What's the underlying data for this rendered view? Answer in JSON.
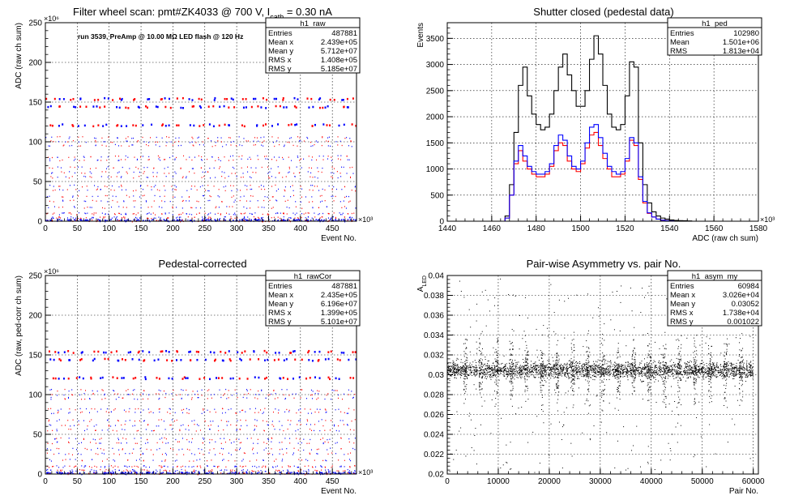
{
  "chart_data": [
    {
      "type": "scatter",
      "title_parts": {
        "main": "Filter wheel scan: pmt#ZK4033 @   700 V, I",
        "sub": "cath",
        "tail": " = 0.30 nA"
      },
      "annotation": "run 3539, PreAmp @ 10.00 MΩ LED flash @  120 Hz",
      "xlabel": "Event No.",
      "ylabel": "ADC (raw ch sum)",
      "x_multiplier": "×10³",
      "y_multiplier": "×10⁶",
      "xlim": [
        0,
        487.9
      ],
      "ylim": [
        0,
        250
      ],
      "xticks": [
        "0",
        "50",
        "100",
        "150",
        "200",
        "250",
        "300",
        "350",
        "400",
        "450"
      ],
      "yticks": [
        "0",
        "50",
        "100",
        "150",
        "200",
        "250"
      ],
      "levels": [
        1,
        5,
        10,
        18,
        26,
        32,
        40,
        45,
        56,
        62,
        68,
        78,
        82,
        96,
        101,
        106,
        122,
        145,
        155
      ],
      "stats": {
        "name": "h1_raw",
        "rows": [
          [
            "Entries",
            "487881"
          ],
          [
            "Mean x",
            "2.439e+05"
          ],
          [
            "Mean y",
            "5.712e+07"
          ],
          [
            "RMS x",
            "1.408e+05"
          ],
          [
            "RMS y",
            "5.185e+07"
          ]
        ]
      },
      "series": [
        {
          "color": "#ff0000"
        },
        {
          "color": "#0000ff"
        }
      ]
    },
    {
      "type": "line",
      "title": "Shutter closed (pedestal data)",
      "xlabel": "ADC (raw ch sum)",
      "ylabel": "Events",
      "x_multiplier": "×10³",
      "xlim": [
        1440,
        1580
      ],
      "ylim": [
        0,
        3800
      ],
      "xticks": [
        "1440",
        "1460",
        "1480",
        "1500",
        "1520",
        "1540",
        "1560",
        "1580"
      ],
      "yticks": [
        "0",
        "500",
        "1000",
        "1500",
        "2000",
        "2500",
        "3000",
        "3500"
      ],
      "stats": {
        "name": "h1_ped",
        "rows": [
          [
            "Entries",
            "102980"
          ],
          [
            "Mean",
            "1.501e+06"
          ],
          [
            "RMS",
            "1.813e+04"
          ]
        ]
      },
      "x": [
        1467,
        1469,
        1471,
        1473,
        1475,
        1477,
        1479,
        1481,
        1483,
        1485,
        1487,
        1489,
        1491,
        1493,
        1495,
        1497,
        1499,
        1501,
        1503,
        1505,
        1507,
        1509,
        1511,
        1513,
        1515,
        1517,
        1519,
        1521,
        1523,
        1525,
        1527,
        1529,
        1531,
        1533,
        1535,
        1537,
        1539,
        1541,
        1543,
        1545,
        1547,
        1549,
        1551
      ],
      "series": [
        {
          "color": "#000000",
          "values": [
            100,
            700,
            1700,
            2600,
            2950,
            2400,
            2050,
            1850,
            1750,
            1800,
            2050,
            2500,
            2950,
            3200,
            2800,
            2500,
            2200,
            2200,
            2500,
            3100,
            3550,
            3200,
            2600,
            2050,
            1800,
            1750,
            1850,
            2400,
            3050,
            2950,
            1500,
            700,
            350,
            180,
            100,
            60,
            40,
            25,
            15,
            10,
            8,
            5,
            0
          ]
        },
        {
          "color": "#ff0000",
          "values": [
            60,
            500,
            1100,
            1350,
            1150,
            1000,
            900,
            850,
            850,
            900,
            1050,
            1350,
            1500,
            1450,
            1150,
            1000,
            950,
            1100,
            1400,
            1650,
            1700,
            1450,
            1200,
            1000,
            850,
            850,
            900,
            1150,
            1550,
            1450,
            800,
            350,
            150,
            80,
            40,
            20,
            10,
            6,
            0,
            0,
            0,
            0,
            0
          ]
        },
        {
          "color": "#0000ff",
          "values": [
            60,
            500,
            1150,
            1450,
            1250,
            1050,
            950,
            900,
            900,
            950,
            1100,
            1450,
            1650,
            1550,
            1250,
            1050,
            1000,
            1150,
            1500,
            1800,
            1850,
            1600,
            1300,
            1050,
            950,
            900,
            950,
            1200,
            1600,
            1500,
            850,
            380,
            160,
            80,
            40,
            20,
            10,
            6,
            0,
            0,
            0,
            0,
            0
          ]
        }
      ]
    },
    {
      "type": "scatter",
      "title": "Pedestal-corrected",
      "xlabel": "Event No.",
      "ylabel": "ADC (raw, ped-corr ch sum)",
      "x_multiplier": "×10³",
      "y_multiplier": "×10⁶",
      "xlim": [
        0,
        487.9
      ],
      "ylim": [
        0,
        250
      ],
      "xticks": [
        "0",
        "50",
        "100",
        "150",
        "200",
        "250",
        "300",
        "350",
        "400",
        "450"
      ],
      "yticks": [
        "0",
        "50",
        "100",
        "150",
        "200",
        "250"
      ],
      "levels": [
        1,
        5,
        10,
        18,
        26,
        32,
        40,
        45,
        56,
        62,
        68,
        78,
        82,
        96,
        101,
        106,
        122,
        145,
        155
      ],
      "stats": {
        "name": "h1_rawCor",
        "rows": [
          [
            "Entries",
            "487881"
          ],
          [
            "Mean x",
            "2.435e+05"
          ],
          [
            "Mean y",
            "6.196e+07"
          ],
          [
            "RMS x",
            "1.399e+05"
          ],
          [
            "RMS y",
            "5.101e+07"
          ]
        ]
      },
      "series": [
        {
          "color": "#ff0000"
        },
        {
          "color": "#0000ff"
        }
      ]
    },
    {
      "type": "scatter",
      "title": "Pair-wise Asymmetry vs. pair No.",
      "xlabel": "Pair No.",
      "ylabel_parts": {
        "main": "A",
        "sub": "LED"
      },
      "xlim": [
        0,
        61000
      ],
      "ylim": [
        0.02,
        0.04
      ],
      "xticks": [
        "0",
        "10000",
        "20000",
        "30000",
        "40000",
        "50000",
        "60000"
      ],
      "yticks": [
        "0.02",
        "0.022",
        "0.024",
        "0.026",
        "0.028",
        "0.03",
        "0.032",
        "0.034",
        "0.036",
        "0.038",
        "0.04"
      ],
      "band_center": 0.0305,
      "spike_spacing": 3000,
      "stats": {
        "name": "h1_asym_my",
        "rows": [
          [
            "Entries",
            "60984"
          ],
          [
            "Mean x",
            "3.026e+04"
          ],
          [
            "Mean y",
            "0.03052"
          ],
          [
            "RMS x",
            "1.738e+04"
          ],
          [
            "RMS y",
            "0.001022"
          ]
        ]
      },
      "series": [
        {
          "color": "#000000"
        }
      ]
    }
  ]
}
